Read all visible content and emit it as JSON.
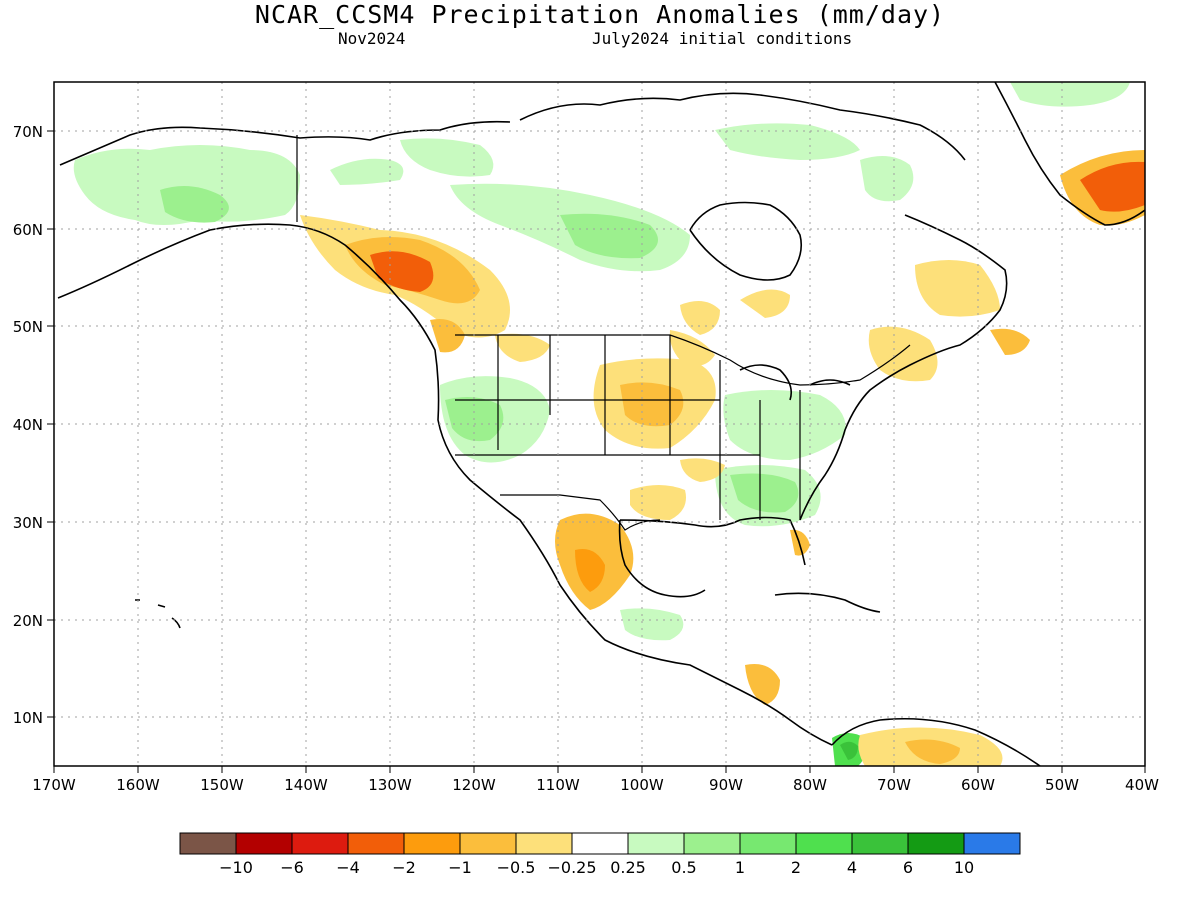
{
  "title": "NCAR_CCSM4 Precipitation Anomalies (mm/day)",
  "valid_month": "Nov2024",
  "init_label": "July2024 initial conditions",
  "lat_labels": [
    "10N",
    "20N",
    "30N",
    "40N",
    "50N",
    "60N",
    "70N"
  ],
  "lon_labels": [
    "170W",
    "160W",
    "150W",
    "140W",
    "130W",
    "120W",
    "110W",
    "100W",
    "90W",
    "80W",
    "70W",
    "60W",
    "50W",
    "40W"
  ],
  "legend": {
    "labels": [
      "−10",
      "−6",
      "−4",
      "−2",
      "−1",
      "−0.5",
      "−0.25",
      "0.25",
      "0.5",
      "1",
      "2",
      "4",
      "6",
      "10"
    ],
    "colors": [
      "#7b5547",
      "#b30000",
      "#dd1b0f",
      "#f25e09",
      "#fd9c0d",
      "#fbbe3c",
      "#fde07a",
      "#ffffff",
      "#c8fac0",
      "#9cf08e",
      "#77e870",
      "#4fe04e",
      "#3ac23a",
      "#149b14",
      "#2a7ae8"
    ]
  },
  "map_features": {
    "dry_color": "#fbbe3c",
    "wet_color": "#9cf08e",
    "strong_dry_color": "#f25e09",
    "strong_wet_color": "#3ac23a",
    "grid": "dotted",
    "projection": "lat-lon"
  }
}
